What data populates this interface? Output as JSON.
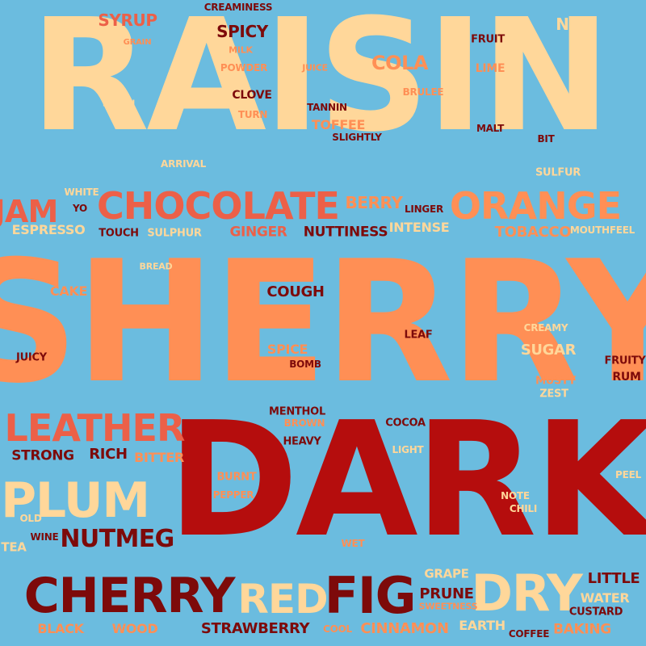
{
  "palette": {
    "background": "#6bbcdf",
    "cream": "#ffd79a",
    "orange": "#ff8f55",
    "coral": "#ec6048",
    "red": "#b50d0d",
    "maroon": "#7d0a0a"
  },
  "words": [
    {
      "text": "RAISIN",
      "color": "cream"
    },
    {
      "text": "SHERRY",
      "color": "orange"
    },
    {
      "text": "DARK",
      "color": "red"
    },
    {
      "text": "CHOCOLATE",
      "color": "coral"
    },
    {
      "text": "ORANGE",
      "color": "orange"
    },
    {
      "text": "LEATHER",
      "color": "coral"
    },
    {
      "text": "PLUM",
      "color": "cream"
    },
    {
      "text": "CHERRY",
      "color": "maroon"
    },
    {
      "text": "FIG",
      "color": "maroon"
    },
    {
      "text": "DRY",
      "color": "cream"
    },
    {
      "text": "RED",
      "color": "cream"
    },
    {
      "text": "NUTMEG",
      "color": "maroon"
    },
    {
      "text": "JAM",
      "color": "coral"
    },
    {
      "text": "BERRY",
      "color": "orange"
    },
    {
      "text": "TOBACCO",
      "color": "orange"
    },
    {
      "text": "SYRUP",
      "color": "coral"
    },
    {
      "text": "CREAMINESS",
      "color": "maroon"
    },
    {
      "text": "SPICY",
      "color": "maroon"
    },
    {
      "text": "COLA",
      "color": "orange"
    },
    {
      "text": "NUT",
      "color": "cream"
    },
    {
      "text": "FRUIT",
      "color": "maroon"
    },
    {
      "text": "LIME",
      "color": "orange"
    },
    {
      "text": "BRULEE",
      "color": "orange"
    },
    {
      "text": "TANNIN",
      "color": "maroon"
    },
    {
      "text": "TOFFEE",
      "color": "orange"
    },
    {
      "text": "SLIGHTLY",
      "color": "maroon"
    },
    {
      "text": "MALT",
      "color": "maroon"
    },
    {
      "text": "BIT",
      "color": "maroon"
    },
    {
      "text": "SULFUR",
      "color": "cream"
    },
    {
      "text": "GRAIN",
      "color": "orange"
    },
    {
      "text": "MILK",
      "color": "orange"
    },
    {
      "text": "POWDER",
      "color": "orange"
    },
    {
      "text": "JUICE",
      "color": "orange"
    },
    {
      "text": "PECAN",
      "color": "cream"
    },
    {
      "text": "CLOVE",
      "color": "maroon"
    },
    {
      "text": "TURN",
      "color": "orange"
    },
    {
      "text": "ARRIVAL",
      "color": "cream"
    },
    {
      "text": "WHITE",
      "color": "cream"
    },
    {
      "text": "YO",
      "color": "maroon"
    },
    {
      "text": "ESPRESSO",
      "color": "cream"
    },
    {
      "text": "TOUCH",
      "color": "maroon"
    },
    {
      "text": "SULPHUR",
      "color": "cream"
    },
    {
      "text": "GINGER",
      "color": "coral"
    },
    {
      "text": "NUTTINESS",
      "color": "maroon"
    },
    {
      "text": "INTENSE",
      "color": "cream"
    },
    {
      "text": "LINGER",
      "color": "maroon"
    },
    {
      "text": "MOUTHFEEL",
      "color": "cream"
    },
    {
      "text": "BREAD",
      "color": "cream"
    },
    {
      "text": "CAKE",
      "color": "orange"
    },
    {
      "text": "COUGH",
      "color": "maroon"
    },
    {
      "text": "LEAF",
      "color": "maroon"
    },
    {
      "text": "CREAMY",
      "color": "cream"
    },
    {
      "text": "SUGAR",
      "color": "cream"
    },
    {
      "text": "JUICY",
      "color": "maroon"
    },
    {
      "text": "SPICE",
      "color": "orange"
    },
    {
      "text": "BOMB",
      "color": "maroon"
    },
    {
      "text": "FRUITY",
      "color": "maroon"
    },
    {
      "text": "RUM",
      "color": "maroon"
    },
    {
      "text": "MUSTY",
      "color": "orange"
    },
    {
      "text": "ZEST",
      "color": "cream"
    },
    {
      "text": "MENTHOL",
      "color": "maroon"
    },
    {
      "text": "BROWN",
      "color": "orange"
    },
    {
      "text": "COCOA",
      "color": "maroon"
    },
    {
      "text": "HEAVY",
      "color": "maroon"
    },
    {
      "text": "LIGHT",
      "color": "cream"
    },
    {
      "text": "STRONG",
      "color": "maroon"
    },
    {
      "text": "RICH",
      "color": "maroon"
    },
    {
      "text": "BITTER",
      "color": "orange"
    },
    {
      "text": "BURNT",
      "color": "orange"
    },
    {
      "text": "PEPPER",
      "color": "orange"
    },
    {
      "text": "PEEL",
      "color": "cream"
    },
    {
      "text": "NOTE",
      "color": "cream"
    },
    {
      "text": "CHILI",
      "color": "cream"
    },
    {
      "text": "OLD",
      "color": "cream"
    },
    {
      "text": "WINE",
      "color": "maroon"
    },
    {
      "text": "TEA",
      "color": "cream"
    },
    {
      "text": "WET",
      "color": "orange"
    },
    {
      "text": "GRAPE",
      "color": "cream"
    },
    {
      "text": "PRUNE",
      "color": "maroon"
    },
    {
      "text": "SWEETNESS",
      "color": "orange"
    },
    {
      "text": "LITTLE",
      "color": "maroon"
    },
    {
      "text": "WATER",
      "color": "cream"
    },
    {
      "text": "CUSTARD",
      "color": "maroon"
    },
    {
      "text": "BLACK",
      "color": "orange"
    },
    {
      "text": "WOOD",
      "color": "orange"
    },
    {
      "text": "STRAWBERRY",
      "color": "maroon"
    },
    {
      "text": "COOL",
      "color": "orange"
    },
    {
      "text": "CINNAMON",
      "color": "orange"
    },
    {
      "text": "EARTH",
      "color": "cream"
    },
    {
      "text": "COFFEE",
      "color": "maroon"
    },
    {
      "text": "BAKING",
      "color": "orange"
    }
  ]
}
